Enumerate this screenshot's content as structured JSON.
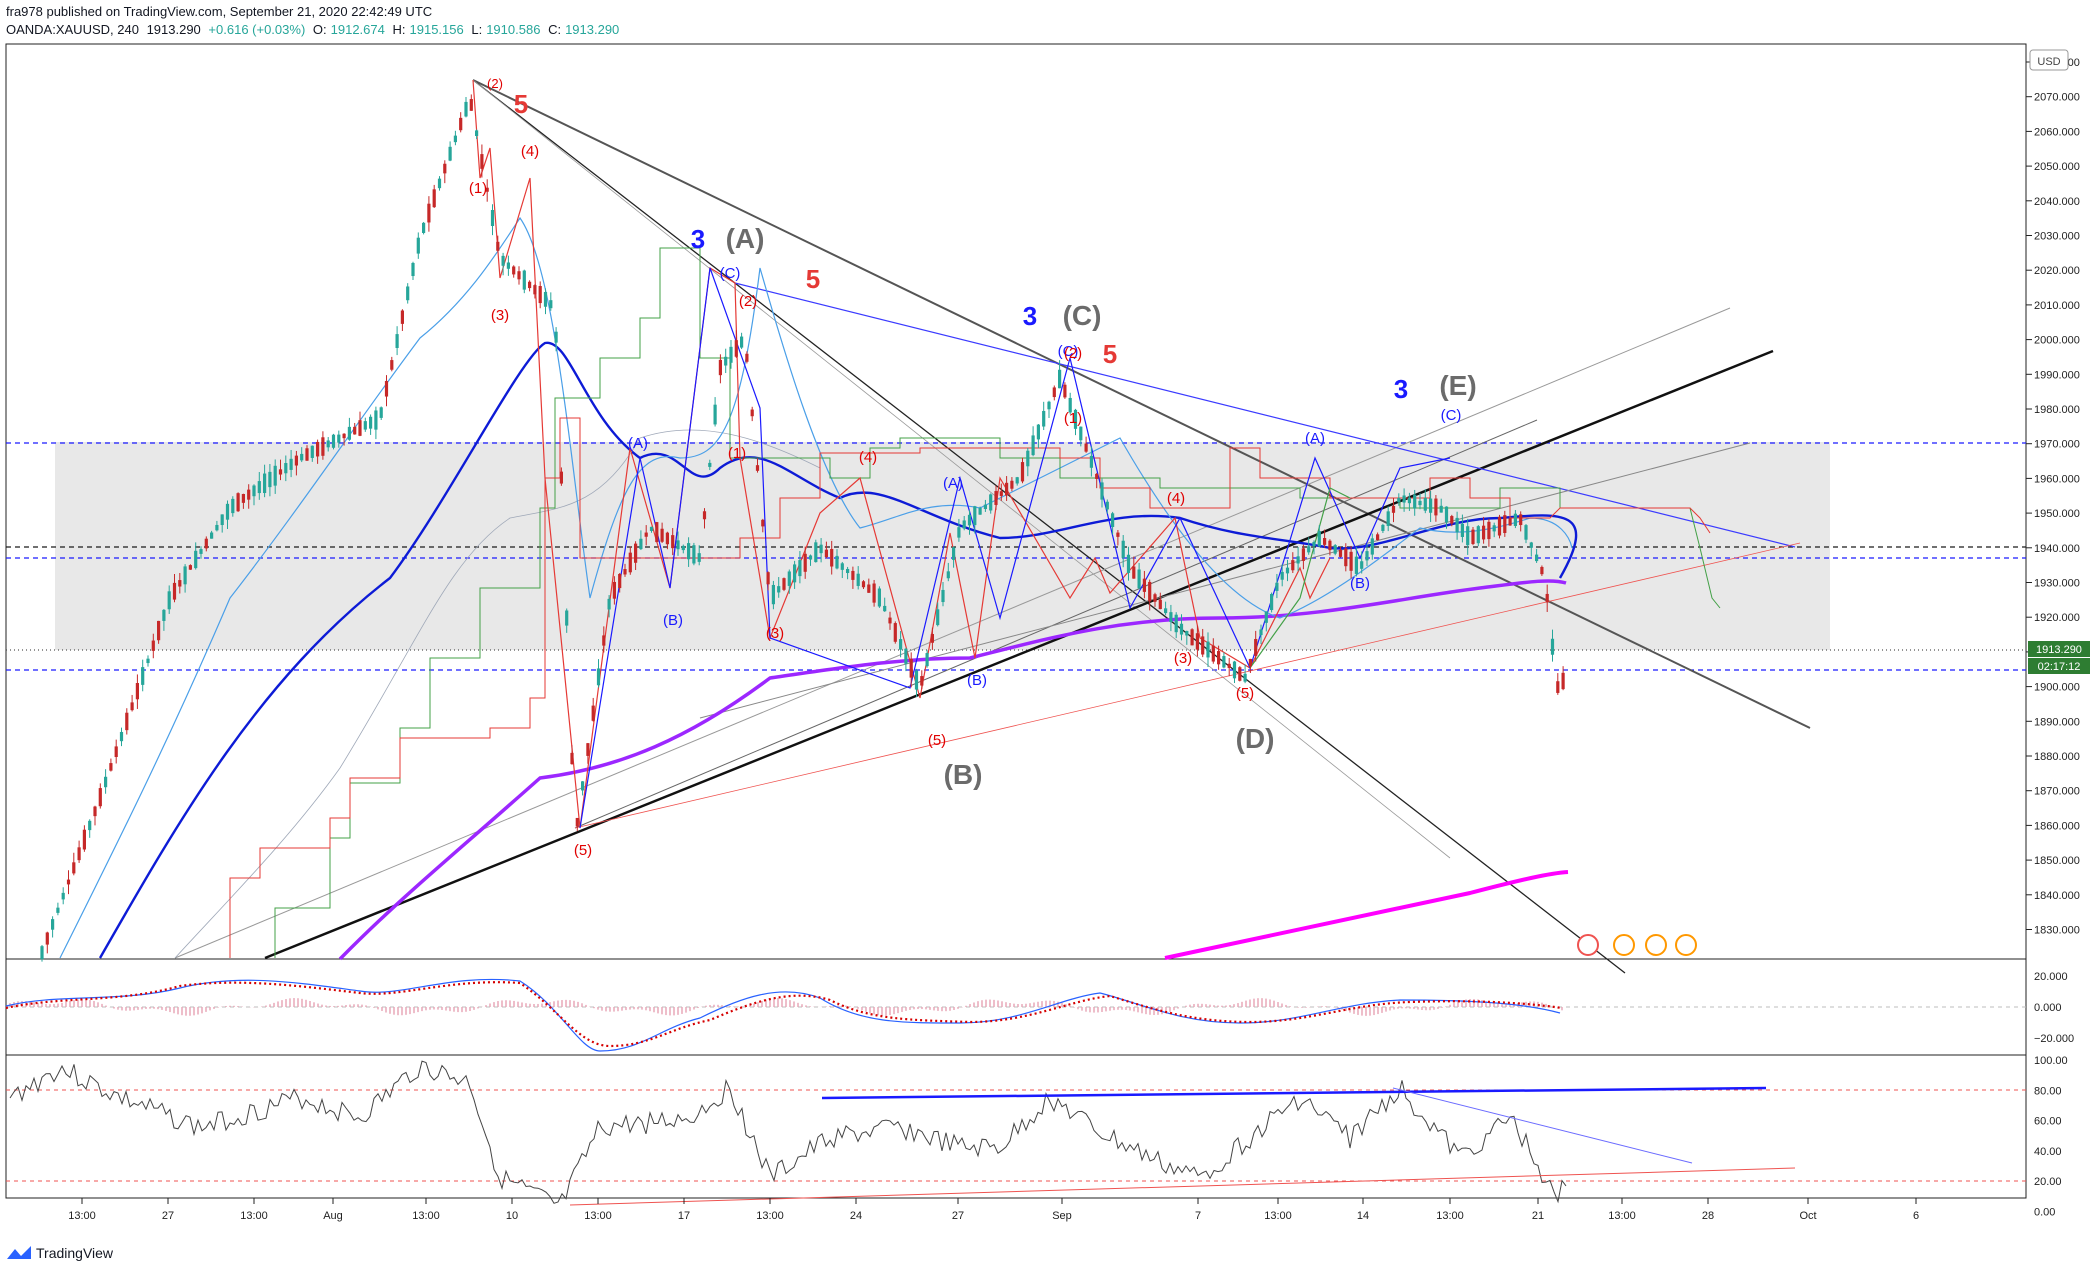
{
  "header": {
    "published": "fra978 published on TradingView.com, September 21, 2020 22:42:49 UTC",
    "symbol": "OANDA:XAUUSD, 240",
    "last": "1913.290",
    "change": "+0.616 (+0.03%)",
    "open_label": "O:",
    "open": "1912.674",
    "high_label": "H:",
    "high": "1915.156",
    "low_label": "L:",
    "low": "1910.586",
    "close_label": "C:",
    "close": "1913.290"
  },
  "currency_badge": "USD",
  "price_axis": [
    "2080.000",
    "2070.000",
    "2060.000",
    "2050.000",
    "2040.000",
    "2030.000",
    "2020.000",
    "2010.000",
    "2000.000",
    "1990.000",
    "1980.000",
    "1970.000",
    "1960.000",
    "1950.000",
    "1940.000",
    "1930.000",
    "1920.000",
    "1910.000",
    "1900.000",
    "1890.000",
    "1880.000",
    "1870.000",
    "1860.000",
    "1850.000",
    "1840.000",
    "1830.000"
  ],
  "last_price_tag": "1913.290",
  "countdown_tag": "02:17:12",
  "macd_axis": [
    "20.000",
    "0.000",
    "−20.000"
  ],
  "rsi_axis": [
    "100.00",
    "80.00",
    "60.00",
    "40.00",
    "20.00",
    "0.00"
  ],
  "time_axis": [
    "13:00",
    "27",
    "13:00",
    "Aug",
    "13:00",
    "10",
    "13:00",
    "17",
    "13:00",
    "24",
    "27",
    "Sep",
    "7",
    "13:00",
    "14",
    "13:00",
    "21",
    "13:00",
    "28",
    "Oct",
    "6"
  ],
  "wave_labels": [
    {
      "t": "(2)",
      "c": "#e00000"
    },
    {
      "t": "5",
      "c": "#e53935"
    },
    {
      "t": "(4)",
      "c": "#e00000"
    },
    {
      "t": "(1)",
      "c": "#e00000"
    },
    {
      "t": "(3)",
      "c": "#e00000"
    },
    {
      "t": "3",
      "c": "#1a1aff"
    },
    {
      "t": "(A)",
      "c": "#6b6b6b"
    },
    {
      "t": "(C)",
      "c": "#1a1aff"
    },
    {
      "t": "5",
      "c": "#e53935"
    },
    {
      "t": "(2)",
      "c": "#e00000"
    },
    {
      "t": "(A)",
      "c": "#1a1aff"
    },
    {
      "t": "(1)",
      "c": "#e00000"
    },
    {
      "t": "(B)",
      "c": "#1a1aff"
    },
    {
      "t": "(3)",
      "c": "#e00000"
    },
    {
      "t": "(5)",
      "c": "#e00000"
    },
    {
      "t": "(4)",
      "c": "#e00000"
    },
    {
      "t": "(A)",
      "c": "#1a1aff"
    },
    {
      "t": "(B)",
      "c": "#1a1aff"
    },
    {
      "t": "(5)",
      "c": "#e00000"
    },
    {
      "t": "(B)",
      "c": "#6b6b6b"
    },
    {
      "t": "3",
      "c": "#1a1aff"
    },
    {
      "t": "(C)",
      "c": "#6b6b6b"
    },
    {
      "t": "(C)",
      "c": "#1a1aff"
    },
    {
      "t": "(2)",
      "c": "#e00000"
    },
    {
      "t": "5",
      "c": "#e53935"
    },
    {
      "t": "(1)",
      "c": "#e00000"
    },
    {
      "t": "(4)",
      "c": "#e00000"
    },
    {
      "t": "(3)",
      "c": "#e00000"
    },
    {
      "t": "(5)",
      "c": "#e00000"
    },
    {
      "t": "(D)",
      "c": "#6b6b6b"
    },
    {
      "t": "(A)",
      "c": "#1a1aff"
    },
    {
      "t": "(B)",
      "c": "#1a1aff"
    },
    {
      "t": "3",
      "c": "#1a1aff"
    },
    {
      "t": "(E)",
      "c": "#6b6b6b"
    },
    {
      "t": "(C)",
      "c": "#1a1aff"
    }
  ],
  "brand": "TradingView",
  "colors": {
    "up": "#26a69a",
    "down": "#ef5350",
    "accent": "#1a1aff",
    "macd_signal": "#d50000",
    "ma_purple": "#9c27ff",
    "ma_magenta": "#ff00ff",
    "last_price": "#2e7d32"
  }
}
